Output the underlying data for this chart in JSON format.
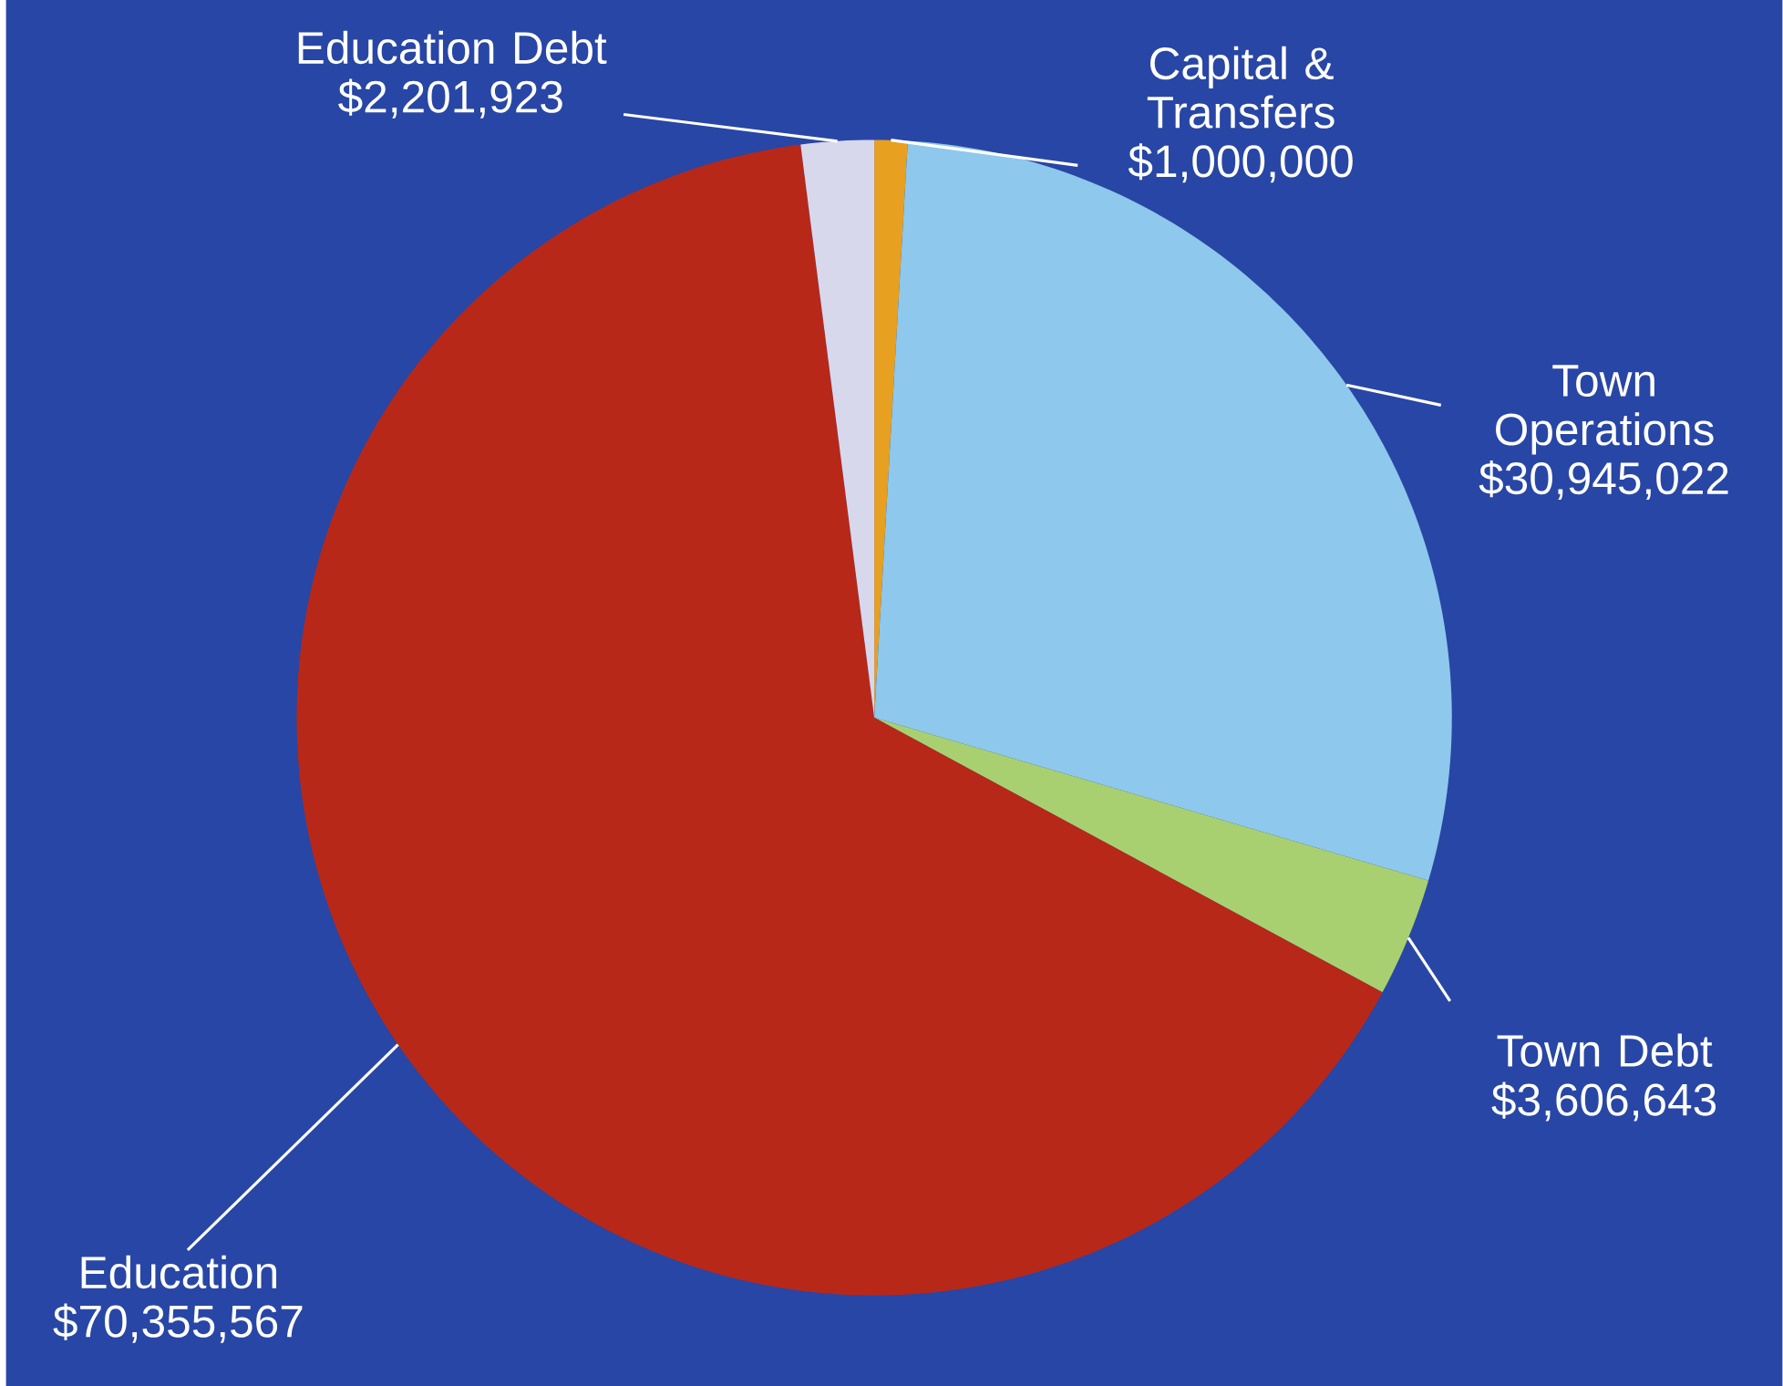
{
  "chart_data": {
    "type": "pie",
    "categories": [
      "Capital & Transfers",
      "Town Operations",
      "Town Debt",
      "Education",
      "Education Debt"
    ],
    "values": [
      1000000,
      30945022,
      3606643,
      70355567,
      2201923
    ],
    "value_labels": [
      "$1,000,000",
      "$30,945,022",
      "$3,606,643",
      "$70,355,567",
      "$2,201,923"
    ],
    "colors": [
      "#e8a020",
      "#8ec8ec",
      "#a8d070",
      "#b82818",
      "#d8d8ec"
    ]
  }
}
